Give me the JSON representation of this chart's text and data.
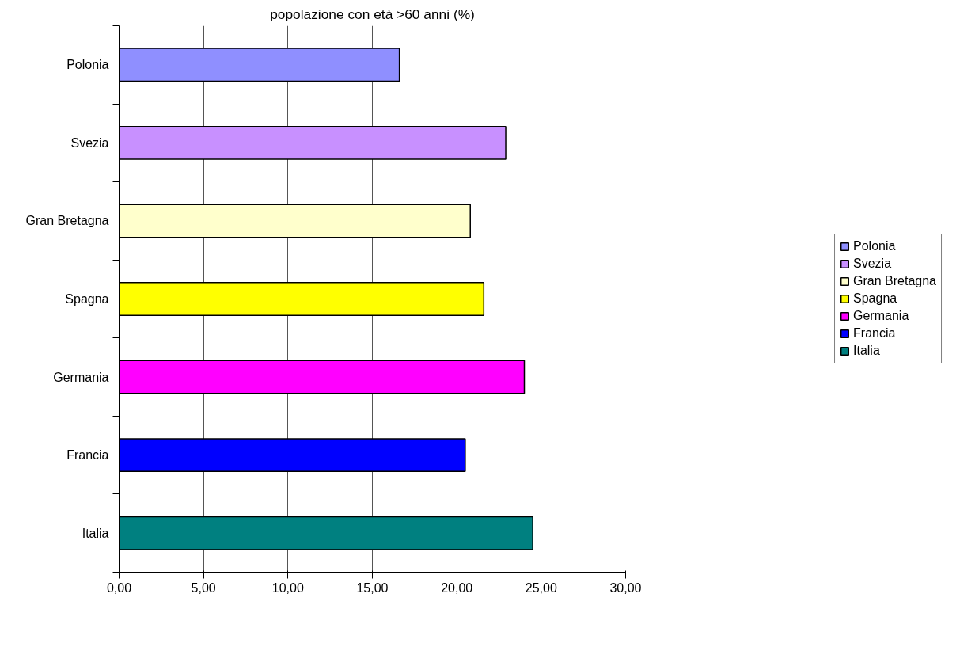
{
  "chart_data": {
    "type": "bar",
    "orientation": "horizontal",
    "title": "popolazione con età >60 anni (%)",
    "categories": [
      "Polonia",
      "Svezia",
      "Gran Bretagna",
      "Spagna",
      "Germania",
      "Francia",
      "Italia"
    ],
    "series": [
      {
        "name": "Polonia",
        "color": "#8f8fff",
        "values": [
          16.6,
          null,
          null,
          null,
          null,
          null,
          null
        ]
      },
      {
        "name": "Svezia",
        "color": "#c890ff",
        "values": [
          null,
          22.9,
          null,
          null,
          null,
          null,
          null
        ]
      },
      {
        "name": "Gran Bretagna",
        "color": "#ffffcc",
        "values": [
          null,
          null,
          20.8,
          null,
          null,
          null,
          null
        ]
      },
      {
        "name": "Spagna",
        "color": "#ffff00",
        "values": [
          null,
          null,
          null,
          21.6,
          null,
          null,
          null
        ]
      },
      {
        "name": "Germania",
        "color": "#ff00ff",
        "values": [
          null,
          null,
          null,
          null,
          24.0,
          null,
          null
        ]
      },
      {
        "name": "Francia",
        "color": "#0000ff",
        "values": [
          null,
          null,
          null,
          null,
          null,
          20.5,
          null
        ]
      },
      {
        "name": "Italia",
        "color": "#008080",
        "values": [
          null,
          null,
          null,
          null,
          null,
          null,
          24.5
        ]
      }
    ],
    "xlim": [
      0,
      30
    ],
    "xticks": [
      {
        "value": 0,
        "label": "0,00"
      },
      {
        "value": 5,
        "label": "5,00"
      },
      {
        "value": 10,
        "label": "10,00"
      },
      {
        "value": 15,
        "label": "15,00"
      },
      {
        "value": 20,
        "label": "20,00"
      },
      {
        "value": 25,
        "label": "25,00"
      },
      {
        "value": 30,
        "label": "30,00"
      }
    ],
    "grid": "x",
    "legend": "right"
  }
}
